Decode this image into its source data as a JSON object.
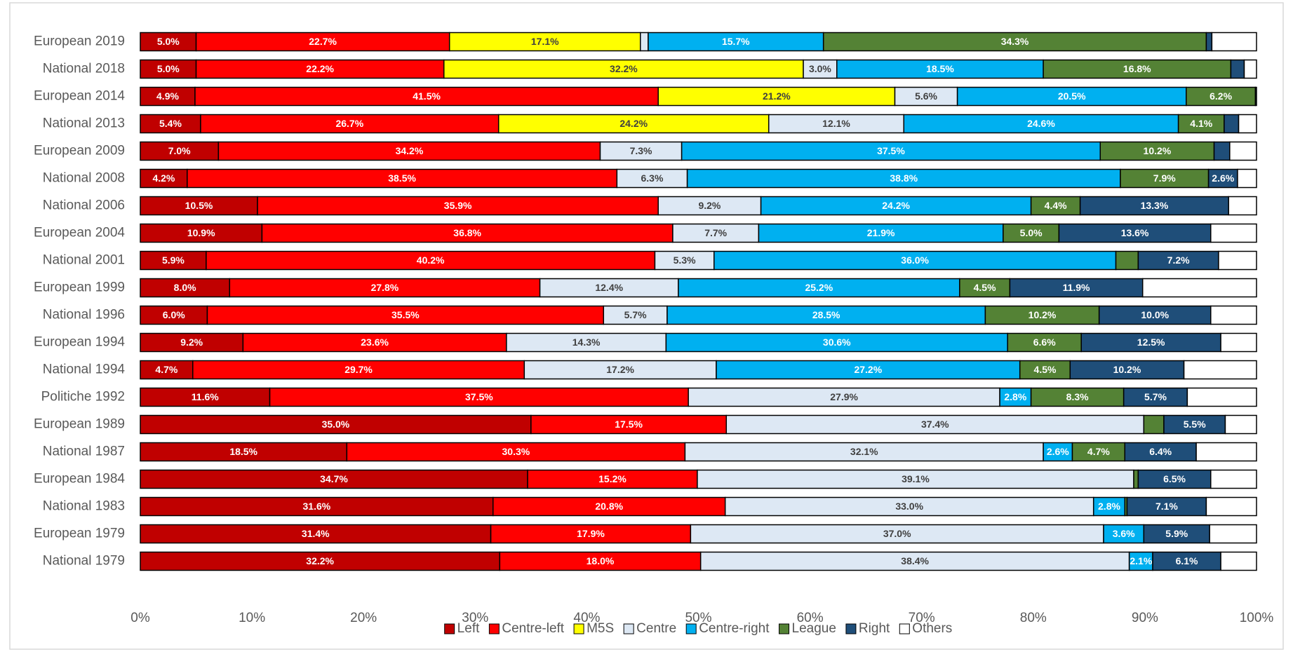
{
  "chart_data": {
    "type": "stacked-barh",
    "categories": [
      "European 2019",
      "National 2018",
      "European 2014",
      "National 2013",
      "European 2009",
      "National 2008",
      "National 2006",
      "European 2004",
      "National 2001",
      "European 1999",
      "National 1996",
      "European 1994",
      "National 1994",
      "Politiche 1992",
      "European 1989",
      "National 1987",
      "European 1984",
      "National 1983",
      "European 1979",
      "National 1979"
    ],
    "xlim": [
      0,
      100
    ],
    "xticks": [
      {
        "value": 0,
        "label": "0%"
      },
      {
        "value": 10,
        "label": "10%"
      },
      {
        "value": 20,
        "label": "20%"
      },
      {
        "value": 30,
        "label": "30%"
      },
      {
        "value": 40,
        "label": "40%"
      },
      {
        "value": 50,
        "label": "50%"
      },
      {
        "value": 60,
        "label": "60%"
      },
      {
        "value": 70,
        "label": "70%"
      },
      {
        "value": 80,
        "label": "80%"
      },
      {
        "value": 90,
        "label": "90%"
      },
      {
        "value": 100,
        "label": "100%"
      }
    ],
    "legend": "bottom",
    "series": [
      {
        "name": "Left",
        "color": "#c00000",
        "label_color": "#ffffff",
        "values": [
          5.0,
          5.0,
          4.9,
          5.4,
          7.0,
          4.2,
          10.5,
          10.9,
          5.9,
          8.0,
          6.0,
          9.2,
          4.7,
          11.6,
          35.0,
          18.5,
          34.7,
          31.6,
          31.4,
          32.2
        ],
        "value_labels": [
          "5.0%",
          "5.0%",
          "4.9%",
          "5.4%",
          "7.0%",
          "4.2%",
          "10.5%",
          "10.9%",
          "5.9%",
          "8.0%",
          "6.0%",
          "9.2%",
          "4.7%",
          "11.6%",
          "35.0%",
          "18.5%",
          "34.7%",
          "31.6%",
          "31.4%",
          "32.2%"
        ]
      },
      {
        "name": "Centre-left",
        "color": "#ff0000",
        "label_color": "#ffffff",
        "values": [
          22.7,
          22.2,
          41.5,
          26.7,
          34.2,
          38.5,
          35.9,
          36.8,
          40.2,
          27.8,
          35.5,
          23.6,
          29.7,
          37.5,
          17.5,
          30.3,
          15.2,
          20.8,
          17.9,
          18.0
        ],
        "value_labels": [
          "22.7%",
          "22.2%",
          "41.5%",
          "26.7%",
          "34.2%",
          "38.5%",
          "35.9%",
          "36.8%",
          "40.2%",
          "27.8%",
          "35.5%",
          "23.6%",
          "29.7%",
          "37.5%",
          "17.5%",
          "30.3%",
          "15.2%",
          "20.8%",
          "17.9%",
          "18.0%"
        ]
      },
      {
        "name": "M5S",
        "color": "#ffff00",
        "label_color": "#404040",
        "values": [
          17.1,
          32.2,
          21.2,
          24.2,
          null,
          null,
          null,
          null,
          null,
          null,
          null,
          null,
          null,
          null,
          null,
          null,
          null,
          null,
          null,
          null
        ],
        "value_labels": [
          "17.1%",
          "32.2%",
          "21.2%",
          "24.2%",
          null,
          null,
          null,
          null,
          null,
          null,
          null,
          null,
          null,
          null,
          null,
          null,
          null,
          null,
          null,
          null
        ]
      },
      {
        "name": "Centre",
        "color": "#dde8f4",
        "label_color": "#404040",
        "values": [
          0.7,
          3.0,
          5.6,
          12.1,
          7.3,
          6.3,
          9.2,
          7.7,
          5.3,
          12.4,
          5.7,
          14.3,
          17.2,
          27.9,
          37.4,
          32.1,
          39.1,
          33.0,
          37.0,
          38.4
        ],
        "value_labels": [
          null,
          "3.0%",
          "5.6%",
          "12.1%",
          "7.3%",
          "6.3%",
          "9.2%",
          "7.7%",
          "5.3%",
          "12.4%",
          "5.7%",
          "14.3%",
          "17.2%",
          "27.9%",
          "37.4%",
          "32.1%",
          "39.1%",
          "33.0%",
          "37.0%",
          "38.4%"
        ]
      },
      {
        "name": "Centre-right",
        "color": "#00b0f0",
        "label_color": "#ffffff",
        "values": [
          15.7,
          18.5,
          20.5,
          24.6,
          37.5,
          38.8,
          24.2,
          21.9,
          36.0,
          25.2,
          28.5,
          30.6,
          27.2,
          2.8,
          null,
          2.6,
          null,
          2.8,
          3.6,
          2.1
        ],
        "value_labels": [
          "15.7%",
          "18.5%",
          "20.5%",
          "24.6%",
          "37.5%",
          "38.8%",
          "24.2%",
          "21.9%",
          "36.0%",
          "25.2%",
          "28.5%",
          "30.6%",
          "27.2%",
          "2.8%",
          null,
          "2.6%",
          null,
          "2.8%",
          "3.6%",
          "2.1%"
        ]
      },
      {
        "name": "League",
        "color": "#548235",
        "label_color": "#ffffff",
        "values": [
          34.3,
          16.8,
          6.2,
          4.1,
          10.2,
          7.9,
          4.4,
          5.0,
          2.0,
          4.5,
          10.2,
          6.6,
          4.5,
          8.3,
          1.8,
          4.7,
          0.4,
          0.2,
          null,
          null
        ],
        "value_labels": [
          "34.3%",
          "16.8%",
          "6.2%",
          "4.1%",
          "10.2%",
          "7.9%",
          "4.4%",
          "5.0%",
          null,
          "4.5%",
          "10.2%",
          "6.6%",
          "4.5%",
          "8.3%",
          null,
          "4.7%",
          null,
          null,
          null,
          null
        ]
      },
      {
        "name": "Right",
        "color": "#1f4e79",
        "label_color": "#ffffff",
        "values": [
          0.5,
          1.2,
          0.1,
          1.3,
          1.4,
          2.6,
          13.3,
          13.6,
          7.2,
          11.9,
          10.0,
          12.5,
          10.2,
          5.7,
          5.5,
          6.4,
          6.5,
          7.1,
          5.9,
          6.1
        ],
        "value_labels": [
          null,
          null,
          null,
          null,
          null,
          "2.6%",
          "13.3%",
          "13.6%",
          "7.2%",
          "11.9%",
          "10.0%",
          "12.5%",
          "10.2%",
          "5.7%",
          "5.5%",
          "6.4%",
          "6.5%",
          "7.1%",
          "5.9%",
          "6.1%"
        ]
      },
      {
        "name": "Others",
        "color": "#ffffff",
        "label_color": "#404040",
        "values": [
          4.0,
          1.1,
          null,
          1.6,
          2.4,
          1.7,
          2.5,
          4.1,
          3.4,
          10.2,
          4.1,
          3.2,
          6.5,
          6.2,
          2.8,
          5.4,
          4.1,
          4.5,
          4.2,
          3.2
        ],
        "value_labels": [
          null,
          null,
          null,
          null,
          null,
          null,
          null,
          null,
          null,
          null,
          null,
          null,
          null,
          null,
          null,
          null,
          null,
          null,
          null,
          null
        ]
      }
    ]
  }
}
